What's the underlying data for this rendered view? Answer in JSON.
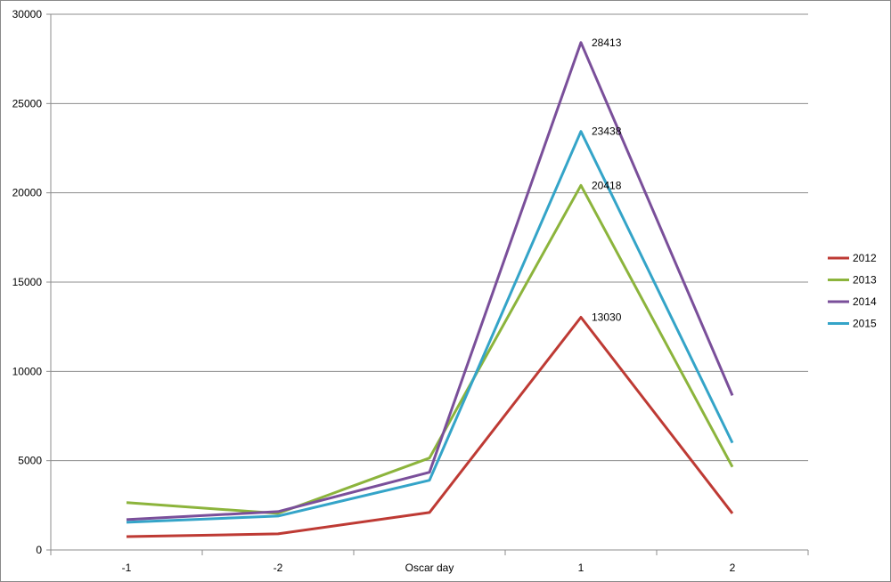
{
  "chart_data": {
    "type": "line",
    "title": "",
    "xlabel": "",
    "ylabel": "",
    "categories": [
      "-1",
      "-2",
      "Oscar day",
      "1",
      "2"
    ],
    "ylim": [
      0,
      30000
    ],
    "yticks": [
      0,
      5000,
      10000,
      15000,
      20000,
      25000,
      30000
    ],
    "grid": true,
    "legend_position": "right",
    "series": [
      {
        "name": "2012",
        "color": "#be3a34",
        "values": [
          750,
          900,
          2100,
          13030,
          2050
        ],
        "peak_label": "13030"
      },
      {
        "name": "2013",
        "color": "#8cb43c",
        "values": [
          2650,
          2050,
          5150,
          20418,
          4650
        ],
        "peak_label": "20418"
      },
      {
        "name": "2014",
        "color": "#7a4f9a",
        "values": [
          1700,
          2150,
          4350,
          28413,
          8650
        ],
        "peak_label": "28413"
      },
      {
        "name": "2015",
        "color": "#34a4c8",
        "values": [
          1550,
          1900,
          3900,
          23438,
          6000
        ],
        "peak_label": "23438"
      }
    ],
    "peak_index": 3
  }
}
